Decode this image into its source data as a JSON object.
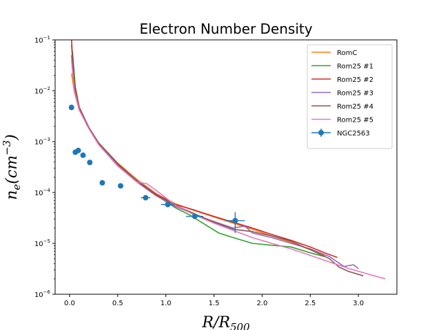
{
  "chart_data": {
    "type": "line",
    "title": "Electron Number Density",
    "xlabel": {
      "base": "R/R",
      "sub": "500"
    },
    "ylabel": {
      "base": "n",
      "sub": "e",
      "mid": "(cm",
      "sup": "−3",
      "end": ")"
    },
    "xlim": [
      -0.15,
      3.4
    ],
    "ylim": [
      1e-06,
      0.1
    ],
    "yscale": "log",
    "x_ticks": [
      0.0,
      0.5,
      1.0,
      1.5,
      2.0,
      2.5,
      3.0
    ],
    "x_tick_labels": [
      "0.0",
      "0.5",
      "1.0",
      "1.5",
      "2.0",
      "2.5",
      "3.0"
    ],
    "y_ticks": [
      {
        "value": 1e-06,
        "base": "10",
        "exp": "−6"
      },
      {
        "value": 1e-05,
        "base": "10",
        "exp": "−5"
      },
      {
        "value": 0.0001,
        "base": "10",
        "exp": "−4"
      },
      {
        "value": 0.001,
        "base": "10",
        "exp": "−3"
      },
      {
        "value": 0.01,
        "base": "10",
        "exp": "−2"
      },
      {
        "value": 0.1,
        "base": "10",
        "exp": "−1"
      }
    ],
    "legend_position": "top-right",
    "series": [
      {
        "name": "RomC",
        "color": "#ff7f0e",
        "x": [
          0.02,
          0.05,
          0.1,
          0.2,
          0.3,
          0.5,
          0.7,
          0.9,
          1.1,
          1.3,
          1.5,
          1.7,
          1.9,
          2.1,
          2.3,
          2.5,
          2.65
        ],
        "y": [
          0.022,
          0.0095,
          0.0042,
          0.0019,
          0.00095,
          0.00038,
          0.00018,
          9.5e-05,
          6e-05,
          4.4e-05,
          3.3e-05,
          2.5e-05,
          1.9e-05,
          1.4e-05,
          1.05e-05,
          7.5e-06,
          5.8e-06
        ]
      },
      {
        "name": "Rom25 #1",
        "color": "#2ca02c",
        "x": [
          0.03,
          0.06,
          0.1,
          0.18,
          0.3,
          0.5,
          0.7,
          0.9,
          1.1,
          1.25,
          1.4,
          1.55,
          1.7,
          1.9,
          2.1,
          2.3,
          2.5,
          2.65
        ],
        "y": [
          0.06,
          0.012,
          0.0048,
          0.0021,
          0.00095,
          0.00036,
          0.00017,
          8.8e-05,
          5e-05,
          3.6e-05,
          2.4e-05,
          1.6e-05,
          1.3e-05,
          1e-05,
          9.2e-06,
          8.5e-06,
          6.5e-06,
          5.5e-06
        ]
      },
      {
        "name": "Rom25 #2",
        "color": "#d62728",
        "x": [
          0.02,
          0.05,
          0.1,
          0.2,
          0.3,
          0.5,
          0.7,
          0.9,
          1.1,
          1.3,
          1.5,
          1.7,
          1.9,
          2.1,
          2.3,
          2.5,
          2.65,
          2.78
        ],
        "y": [
          0.1,
          0.014,
          0.0048,
          0.0019,
          0.00095,
          0.00036,
          0.00017,
          9.2e-05,
          5.8e-05,
          4.5e-05,
          3.4e-05,
          2.6e-05,
          2e-05,
          1.5e-05,
          1.15e-05,
          8.5e-06,
          6.5e-06,
          5.3e-06
        ]
      },
      {
        "name": "Rom25 #3",
        "color": "#9467bd",
        "x": [
          0.02,
          0.05,
          0.1,
          0.2,
          0.3,
          0.5,
          0.7,
          0.9,
          1.1,
          1.3,
          1.5,
          1.7,
          1.82,
          1.9,
          2.1,
          2.3,
          2.5,
          2.7,
          2.85,
          2.95,
          3.0
        ],
        "y": [
          0.05,
          0.012,
          0.0046,
          0.0019,
          0.00093,
          0.00034,
          0.00016,
          8.6e-05,
          5.3e-05,
          3.7e-05,
          2.7e-05,
          2e-05,
          2.2e-05,
          1.6e-05,
          1.3e-05,
          1e-05,
          7.8e-06,
          5.5e-06,
          3.5e-06,
          3.8e-06,
          3.2e-06
        ]
      },
      {
        "name": "Rom25 #4",
        "color": "#8c564b",
        "x": [
          0.02,
          0.05,
          0.1,
          0.2,
          0.3,
          0.5,
          0.7,
          0.9,
          1.1,
          1.3,
          1.5,
          1.7,
          1.9,
          2.1,
          2.3,
          2.5,
          2.7,
          2.8,
          2.9,
          3.05
        ],
        "y": [
          0.08,
          0.013,
          0.0047,
          0.0019,
          0.00095,
          0.00037,
          0.00017,
          9e-05,
          5.6e-05,
          3.8e-05,
          2.6e-05,
          1.9e-05,
          1.7e-05,
          1.4e-05,
          1.1e-05,
          7.5e-06,
          5e-06,
          3.4e-06,
          2.8e-06,
          2.3e-06
        ]
      },
      {
        "name": "Rom25 #5",
        "color": "#e377c2",
        "x": [
          0.02,
          0.05,
          0.1,
          0.2,
          0.3,
          0.5,
          0.7,
          0.8,
          0.9,
          1.1,
          1.3,
          1.5,
          1.7,
          1.9,
          2.1,
          2.3,
          2.5,
          2.7,
          2.9,
          3.1,
          3.28
        ],
        "y": [
          0.04,
          0.01,
          0.0042,
          0.0018,
          0.00088,
          0.00033,
          0.00016,
          0.00015,
          0.00011,
          5.6e-05,
          3.6e-05,
          2.5e-05,
          1.8e-05,
          1.3e-05,
          1e-05,
          7.8e-06,
          5.8e-06,
          4.3e-06,
          3.2e-06,
          2.5e-06,
          2e-06
        ]
      }
    ],
    "observed": {
      "name": "NGC2563",
      "color": "#1f77b4",
      "points": [
        {
          "x": 0.02,
          "y": 0.0047,
          "xerr": 0.0,
          "yerr_lo": 0.0004,
          "yerr_hi": 0.0004
        },
        {
          "x": 0.06,
          "y": 0.00062,
          "xerr": 0.0,
          "yerr_lo": 5e-05,
          "yerr_hi": 5e-05
        },
        {
          "x": 0.09,
          "y": 0.00067,
          "xerr": 0.0,
          "yerr_lo": 5e-05,
          "yerr_hi": 5e-05
        },
        {
          "x": 0.14,
          "y": 0.00054,
          "xerr": 0.0,
          "yerr_lo": 4e-05,
          "yerr_hi": 4e-05
        },
        {
          "x": 0.21,
          "y": 0.00039,
          "xerr": 0.0,
          "yerr_lo": 3e-05,
          "yerr_hi": 3e-05
        },
        {
          "x": 0.34,
          "y": 0.000155,
          "xerr": 0.0,
          "yerr_lo": 1e-05,
          "yerr_hi": 1e-05
        },
        {
          "x": 0.53,
          "y": 0.000135,
          "xerr": 0.0,
          "yerr_lo": 1e-05,
          "yerr_hi": 1e-05
        },
        {
          "x": 0.79,
          "y": 7.9e-05,
          "xerr": 0.05,
          "yerr_lo": 8e-06,
          "yerr_hi": 8e-06
        },
        {
          "x": 1.02,
          "y": 5.8e-05,
          "xerr": 0.07,
          "yerr_lo": 5e-06,
          "yerr_hi": 5e-06
        },
        {
          "x": 1.3,
          "y": 3.4e-05,
          "xerr": 0.09,
          "yerr_lo": 4e-06,
          "yerr_hi": 4e-06
        },
        {
          "x": 1.72,
          "y": 2.8e-05,
          "xerr": 0.1,
          "yerr_lo": 1.2e-05,
          "yerr_hi": 1.3e-05
        }
      ]
    }
  }
}
